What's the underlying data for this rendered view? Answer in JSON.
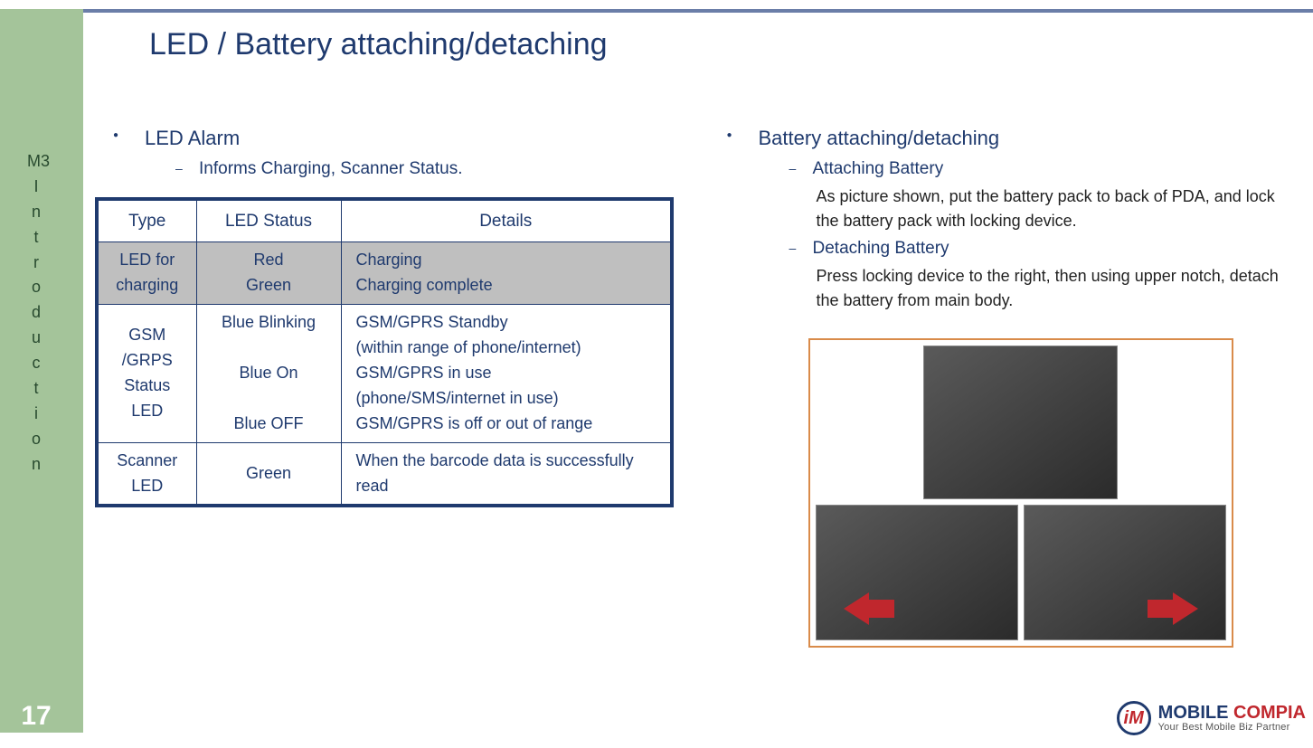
{
  "colors": {
    "accent_navy": "#1f3a6e",
    "green_band": "#a4c49a",
    "top_line": "#6b7ea8",
    "shaded_row": "#bfbfbf",
    "photo_border": "#d98b4a",
    "arrow_red": "#c0272d",
    "logo_blue": "#1f3a6e",
    "logo_red": "#c0272d"
  },
  "page_number": "17",
  "sidebar_label": "M3\nI\nn\nt\nr\no\nd\nu\nc\nt\ni\no\nn",
  "title": "LED / Battery attaching/detaching",
  "left": {
    "heading": "LED Alarm",
    "sub": "Informs Charging, Scanner Status.",
    "table": {
      "headers": [
        "Type",
        "LED Status",
        "Details"
      ],
      "rows": [
        {
          "shaded": true,
          "type": "LED for charging",
          "status": [
            "Red",
            "Green"
          ],
          "details": [
            "Charging",
            "Charging complete"
          ]
        },
        {
          "shaded": false,
          "type": "GSM /GRPS Status LED",
          "status": [
            "Blue Blinking",
            "",
            "Blue On",
            "",
            "Blue OFF"
          ],
          "details": [
            "GSM/GPRS Standby",
            "(within range of phone/internet)",
            "GSM/GPRS in use",
            "(phone/SMS/internet in use)",
            "GSM/GPRS is off or out of range"
          ]
        },
        {
          "shaded": false,
          "type": "Scanner LED",
          "status": [
            "Green"
          ],
          "details": [
            "When the barcode data is successfully read"
          ]
        }
      ]
    }
  },
  "right": {
    "heading": "Battery attaching/detaching",
    "items": [
      {
        "subheading": "Attaching Battery",
        "body": "As picture shown, put the battery pack to back of PDA, and lock the battery pack with locking device."
      },
      {
        "subheading": "Detaching Battery",
        "body": "Press locking device to the right, then using upper notch, detach the battery from main body."
      }
    ]
  },
  "logo": {
    "mark": "iM",
    "main_blue": "MOBILE ",
    "main_red": "COMPIA",
    "tagline": "Your Best Mobile Biz Partner"
  }
}
